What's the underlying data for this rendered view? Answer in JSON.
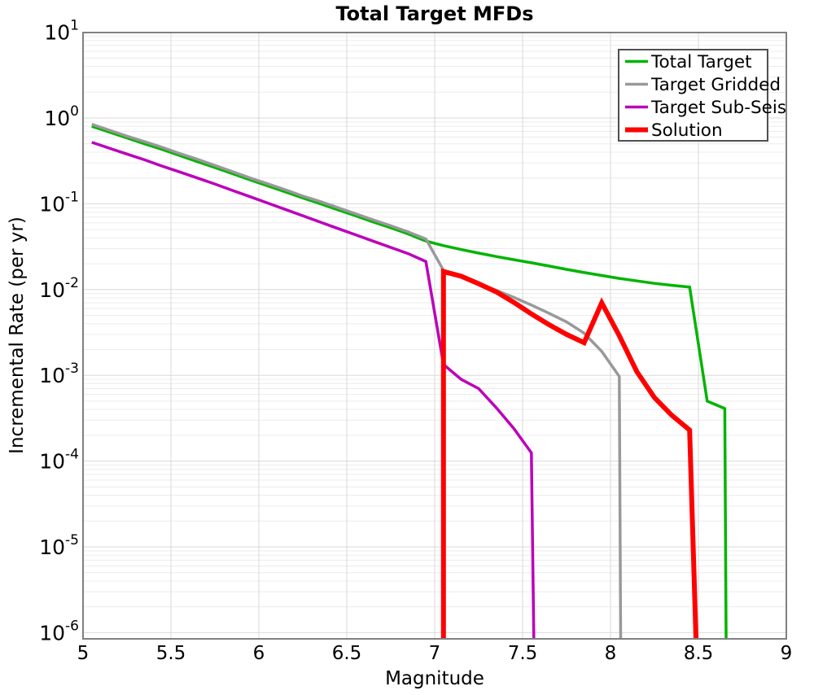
{
  "chart_data": {
    "type": "line",
    "title": "Total Target MFDs",
    "xlabel": "Magnitude",
    "ylabel": "Incremental Rate (per yr)",
    "xlim": [
      5,
      9
    ],
    "ylim": [
      1e-06,
      10
    ],
    "yscale": "log",
    "grid": "major and log-minor gridlines, light gray, on",
    "legend_position": "upper right",
    "x_ticks": [
      5,
      5.5,
      6,
      6.5,
      7,
      7.5,
      8,
      8.5,
      9
    ],
    "x_tick_labels": [
      "5",
      "5.5",
      "6",
      "6.5",
      "7",
      "7.5",
      "8",
      "8.5",
      "9"
    ],
    "y_tick_exponents": [
      1,
      0,
      -1,
      -2,
      -3,
      -4,
      -5,
      -6
    ],
    "note_zero_rate": "a rate of 0 means the curve drops below the plot floor (vertical cutoff)",
    "series": [
      {
        "name": "Total Target",
        "color": "#00b400",
        "line_width": 3.5,
        "points": [
          [
            5.05,
            0.8
          ],
          [
            5.15,
            0.685
          ],
          [
            5.25,
            0.585
          ],
          [
            5.35,
            0.5
          ],
          [
            5.45,
            0.43
          ],
          [
            5.55,
            0.365
          ],
          [
            5.65,
            0.31
          ],
          [
            5.75,
            0.265
          ],
          [
            5.85,
            0.225
          ],
          [
            5.95,
            0.19
          ],
          [
            6.05,
            0.162
          ],
          [
            6.15,
            0.138
          ],
          [
            6.25,
            0.117
          ],
          [
            6.35,
            0.1
          ],
          [
            6.45,
            0.085
          ],
          [
            6.55,
            0.0725
          ],
          [
            6.65,
            0.0615
          ],
          [
            6.75,
            0.0525
          ],
          [
            6.85,
            0.0445
          ],
          [
            6.95,
            0.0368
          ],
          [
            7.05,
            0.0325
          ],
          [
            7.15,
            0.0293
          ],
          [
            7.25,
            0.0266
          ],
          [
            7.35,
            0.0243
          ],
          [
            7.45,
            0.0223
          ],
          [
            7.55,
            0.0205
          ],
          [
            7.65,
            0.0188
          ],
          [
            7.75,
            0.0172
          ],
          [
            7.85,
            0.0158
          ],
          [
            7.95,
            0.0146
          ],
          [
            8.05,
            0.0135
          ],
          [
            8.15,
            0.0126
          ],
          [
            8.25,
            0.0118
          ],
          [
            8.35,
            0.0112
          ],
          [
            8.45,
            0.0107
          ],
          [
            8.55,
            0.0005
          ],
          [
            8.65,
            0.00041
          ],
          [
            8.66,
            0
          ]
        ]
      },
      {
        "name": "Target Gridded",
        "color": "#999999",
        "line_width": 3.5,
        "points": [
          [
            5.05,
            0.845
          ],
          [
            5.15,
            0.72
          ],
          [
            5.25,
            0.615
          ],
          [
            5.35,
            0.53
          ],
          [
            5.45,
            0.455
          ],
          [
            5.55,
            0.385
          ],
          [
            5.65,
            0.33
          ],
          [
            5.75,
            0.28
          ],
          [
            5.85,
            0.237
          ],
          [
            5.95,
            0.2
          ],
          [
            6.05,
            0.171
          ],
          [
            6.15,
            0.146
          ],
          [
            6.25,
            0.123
          ],
          [
            6.35,
            0.106
          ],
          [
            6.45,
            0.09
          ],
          [
            6.55,
            0.0765
          ],
          [
            6.65,
            0.065
          ],
          [
            6.75,
            0.0555
          ],
          [
            6.85,
            0.047
          ],
          [
            6.95,
            0.0388
          ],
          [
            7.05,
            0.0168
          ],
          [
            7.15,
            0.0141
          ],
          [
            7.25,
            0.0118
          ],
          [
            7.35,
            0.0098
          ],
          [
            7.45,
            0.0081
          ],
          [
            7.55,
            0.0066
          ],
          [
            7.65,
            0.0053
          ],
          [
            7.75,
            0.0042
          ],
          [
            7.85,
            0.0031
          ],
          [
            7.95,
            0.0019
          ],
          [
            8.05,
            0.00097
          ],
          [
            8.06,
            0
          ]
        ]
      },
      {
        "name": "Target Sub-Seis",
        "color": "#bb00bb",
        "line_width": 3.5,
        "points": [
          [
            5.05,
            0.52
          ],
          [
            5.15,
            0.445
          ],
          [
            5.25,
            0.38
          ],
          [
            5.35,
            0.325
          ],
          [
            5.45,
            0.275
          ],
          [
            5.55,
            0.235
          ],
          [
            5.65,
            0.2
          ],
          [
            5.75,
            0.17
          ],
          [
            5.85,
            0.143
          ],
          [
            5.95,
            0.121
          ],
          [
            6.05,
            0.102
          ],
          [
            6.15,
            0.086
          ],
          [
            6.25,
            0.0725
          ],
          [
            6.35,
            0.061
          ],
          [
            6.45,
            0.0515
          ],
          [
            6.55,
            0.0435
          ],
          [
            6.65,
            0.0367
          ],
          [
            6.75,
            0.031
          ],
          [
            6.85,
            0.0262
          ],
          [
            6.95,
            0.0212
          ],
          [
            7.05,
            0.00134
          ],
          [
            7.15,
            0.0009
          ],
          [
            7.25,
            0.0007
          ],
          [
            7.35,
            0.00042
          ],
          [
            7.45,
            0.00024
          ],
          [
            7.55,
            0.000125
          ],
          [
            7.57,
            0
          ]
        ]
      },
      {
        "name": "Solution",
        "color": "#ff0000",
        "line_width": 6,
        "points": [
          [
            7.05,
            0
          ],
          [
            7.05,
            0.0162
          ],
          [
            7.15,
            0.0143
          ],
          [
            7.25,
            0.0117
          ],
          [
            7.35,
            0.0094
          ],
          [
            7.45,
            0.0071
          ],
          [
            7.55,
            0.0052
          ],
          [
            7.65,
            0.0039
          ],
          [
            7.75,
            0.003
          ],
          [
            7.85,
            0.0024
          ],
          [
            7.95,
            0.007
          ],
          [
            8.05,
            0.0029
          ],
          [
            8.15,
            0.0011
          ],
          [
            8.25,
            0.00055
          ],
          [
            8.35,
            0.00034
          ],
          [
            8.45,
            0.00023
          ],
          [
            8.5,
            0
          ]
        ]
      }
    ]
  },
  "legend": {
    "items": [
      {
        "label": "Total Target"
      },
      {
        "label": "Target Gridded"
      },
      {
        "label": "Target Sub-Seis"
      },
      {
        "label": "Solution"
      }
    ]
  },
  "colors": {
    "background": "#ffffff",
    "frame": "#808080",
    "grid_major": "#d9d9d9",
    "grid_minor": "#ececec",
    "legend_border": "#4f4f4f",
    "text": "#000000"
  }
}
